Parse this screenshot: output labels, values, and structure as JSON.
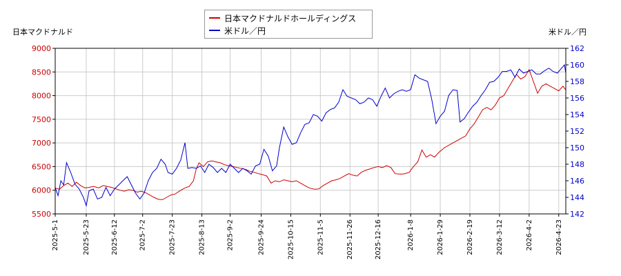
{
  "colors": {
    "series1": "#cc0000",
    "series2": "#0000cc",
    "grid": "#cccccc",
    "axis": "#000000",
    "tick_left": "#cc0000",
    "tick_right": "#0000cc"
  },
  "chart_data": {
    "type": "line",
    "legend_position": "top-center",
    "grid": true,
    "series": [
      {
        "name": "日本マクドナルドホールディングス",
        "axis": "left",
        "points": [
          [
            "2025-05-01",
            6050
          ],
          [
            "2025-05-04",
            6020
          ],
          [
            "2025-05-07",
            6100
          ],
          [
            "2025-05-10",
            6150
          ],
          [
            "2025-05-13",
            6080
          ],
          [
            "2025-05-16",
            6170
          ],
          [
            "2025-05-19",
            6100
          ],
          [
            "2025-05-22",
            6050
          ],
          [
            "2025-05-25",
            6060
          ],
          [
            "2025-05-28",
            6080
          ],
          [
            "2025-06-01",
            6050
          ],
          [
            "2025-06-04",
            6100
          ],
          [
            "2025-06-07",
            6080
          ],
          [
            "2025-06-10",
            6060
          ],
          [
            "2025-06-13",
            6030
          ],
          [
            "2025-06-16",
            6000
          ],
          [
            "2025-06-19",
            5980
          ],
          [
            "2025-06-22",
            6010
          ],
          [
            "2025-06-25",
            6000
          ],
          [
            "2025-06-28",
            5960
          ],
          [
            "2025-07-01",
            5980
          ],
          [
            "2025-07-04",
            5950
          ],
          [
            "2025-07-07",
            5900
          ],
          [
            "2025-07-10",
            5850
          ],
          [
            "2025-07-13",
            5810
          ],
          [
            "2025-07-16",
            5800
          ],
          [
            "2025-07-19",
            5850
          ],
          [
            "2025-07-22",
            5900
          ],
          [
            "2025-07-25",
            5920
          ],
          [
            "2025-07-28",
            5980
          ],
          [
            "2025-08-01",
            6050
          ],
          [
            "2025-08-04",
            6080
          ],
          [
            "2025-08-07",
            6200
          ],
          [
            "2025-08-09",
            6450
          ],
          [
            "2025-08-11",
            6580
          ],
          [
            "2025-08-14",
            6500
          ],
          [
            "2025-08-17",
            6600
          ],
          [
            "2025-08-20",
            6620
          ],
          [
            "2025-08-23",
            6600
          ],
          [
            "2025-08-26",
            6580
          ],
          [
            "2025-08-29",
            6540
          ],
          [
            "2025-09-01",
            6520
          ],
          [
            "2025-09-04",
            6500
          ],
          [
            "2025-09-07",
            6480
          ],
          [
            "2025-09-10",
            6460
          ],
          [
            "2025-09-13",
            6440
          ],
          [
            "2025-09-16",
            6400
          ],
          [
            "2025-09-19",
            6380
          ],
          [
            "2025-09-22",
            6350
          ],
          [
            "2025-09-25",
            6330
          ],
          [
            "2025-09-28",
            6300
          ],
          [
            "2025-10-01",
            6150
          ],
          [
            "2025-10-04",
            6200
          ],
          [
            "2025-10-07",
            6180
          ],
          [
            "2025-10-10",
            6220
          ],
          [
            "2025-10-13",
            6200
          ],
          [
            "2025-10-16",
            6180
          ],
          [
            "2025-10-19",
            6200
          ],
          [
            "2025-10-22",
            6150
          ],
          [
            "2025-10-25",
            6100
          ],
          [
            "2025-10-28",
            6050
          ],
          [
            "2025-11-01",
            6020
          ],
          [
            "2025-11-04",
            6030
          ],
          [
            "2025-11-07",
            6100
          ],
          [
            "2025-11-10",
            6150
          ],
          [
            "2025-11-13",
            6200
          ],
          [
            "2025-11-16",
            6220
          ],
          [
            "2025-11-19",
            6250
          ],
          [
            "2025-11-22",
            6300
          ],
          [
            "2025-11-25",
            6350
          ],
          [
            "2025-11-28",
            6320
          ],
          [
            "2025-12-01",
            6300
          ],
          [
            "2025-12-04",
            6380
          ],
          [
            "2025-12-07",
            6420
          ],
          [
            "2025-12-10",
            6450
          ],
          [
            "2025-12-13",
            6480
          ],
          [
            "2025-12-16",
            6500
          ],
          [
            "2025-12-19",
            6480
          ],
          [
            "2025-12-22",
            6520
          ],
          [
            "2025-12-25",
            6480
          ],
          [
            "2025-12-28",
            6350
          ],
          [
            "2026-01-01",
            6340
          ],
          [
            "2026-01-04",
            6350
          ],
          [
            "2026-01-07",
            6380
          ],
          [
            "2026-01-10",
            6500
          ],
          [
            "2026-01-13",
            6600
          ],
          [
            "2026-01-16",
            6850
          ],
          [
            "2026-01-19",
            6700
          ],
          [
            "2026-01-22",
            6750
          ],
          [
            "2026-01-25",
            6700
          ],
          [
            "2026-01-28",
            6800
          ],
          [
            "2026-02-01",
            6900
          ],
          [
            "2026-02-04",
            6950
          ],
          [
            "2026-02-07",
            7000
          ],
          [
            "2026-02-10",
            7050
          ],
          [
            "2026-02-13",
            7100
          ],
          [
            "2026-02-16",
            7150
          ],
          [
            "2026-02-19",
            7300
          ],
          [
            "2026-02-22",
            7400
          ],
          [
            "2026-02-25",
            7550
          ],
          [
            "2026-02-28",
            7700
          ],
          [
            "2026-03-03",
            7750
          ],
          [
            "2026-03-06",
            7700
          ],
          [
            "2026-03-09",
            7800
          ],
          [
            "2026-03-12",
            7950
          ],
          [
            "2026-03-15",
            8000
          ],
          [
            "2026-03-18",
            8150
          ],
          [
            "2026-03-21",
            8300
          ],
          [
            "2026-03-24",
            8450
          ],
          [
            "2026-03-27",
            8350
          ],
          [
            "2026-03-30",
            8400
          ],
          [
            "2026-04-02",
            8550
          ],
          [
            "2026-04-05",
            8300
          ],
          [
            "2026-04-08",
            8050
          ],
          [
            "2026-04-11",
            8200
          ],
          [
            "2026-04-14",
            8250
          ],
          [
            "2026-04-17",
            8200
          ],
          [
            "2026-04-20",
            8150
          ],
          [
            "2026-04-23",
            8100
          ],
          [
            "2026-04-26",
            8200
          ],
          [
            "2026-04-28",
            8120
          ]
        ]
      },
      {
        "name": "米ドル／円",
        "axis": "right",
        "points": [
          [
            "2025-05-01",
            145.2
          ],
          [
            "2025-05-03",
            144.2
          ],
          [
            "2025-05-05",
            146.0
          ],
          [
            "2025-05-07",
            145.5
          ],
          [
            "2025-05-09",
            148.2
          ],
          [
            "2025-05-12",
            147.0
          ],
          [
            "2025-05-15",
            145.6
          ],
          [
            "2025-05-18",
            145.0
          ],
          [
            "2025-05-21",
            144.0
          ],
          [
            "2025-05-23",
            143.0
          ],
          [
            "2025-05-25",
            144.8
          ],
          [
            "2025-05-28",
            145.0
          ],
          [
            "2025-05-31",
            143.8
          ],
          [
            "2025-06-03",
            144.0
          ],
          [
            "2025-06-06",
            145.2
          ],
          [
            "2025-06-09",
            144.2
          ],
          [
            "2025-06-12",
            145.0
          ],
          [
            "2025-06-15",
            145.5
          ],
          [
            "2025-06-18",
            146.0
          ],
          [
            "2025-06-21",
            146.5
          ],
          [
            "2025-06-24",
            145.5
          ],
          [
            "2025-06-27",
            144.5
          ],
          [
            "2025-06-30",
            143.8
          ],
          [
            "2025-07-03",
            144.5
          ],
          [
            "2025-07-06",
            146.0
          ],
          [
            "2025-07-09",
            147.0
          ],
          [
            "2025-07-12",
            147.5
          ],
          [
            "2025-07-15",
            148.6
          ],
          [
            "2025-07-18",
            148.0
          ],
          [
            "2025-07-20",
            147.0
          ],
          [
            "2025-07-23",
            146.8
          ],
          [
            "2025-07-26",
            147.5
          ],
          [
            "2025-07-29",
            148.5
          ],
          [
            "2025-08-01",
            150.6
          ],
          [
            "2025-08-03",
            147.5
          ],
          [
            "2025-08-06",
            147.6
          ],
          [
            "2025-08-09",
            147.5
          ],
          [
            "2025-08-12",
            147.8
          ],
          [
            "2025-08-15",
            147.0
          ],
          [
            "2025-08-18",
            148.0
          ],
          [
            "2025-08-21",
            147.6
          ],
          [
            "2025-08-24",
            147.0
          ],
          [
            "2025-08-27",
            147.5
          ],
          [
            "2025-08-30",
            147.0
          ],
          [
            "2025-09-02",
            148.0
          ],
          [
            "2025-09-05",
            147.5
          ],
          [
            "2025-09-08",
            147.0
          ],
          [
            "2025-09-11",
            147.5
          ],
          [
            "2025-09-14",
            147.2
          ],
          [
            "2025-09-17",
            146.8
          ],
          [
            "2025-09-20",
            147.8
          ],
          [
            "2025-09-23",
            148.0
          ],
          [
            "2025-09-26",
            149.8
          ],
          [
            "2025-09-29",
            149.0
          ],
          [
            "2025-10-02",
            147.2
          ],
          [
            "2025-10-05",
            147.8
          ],
          [
            "2025-10-07",
            150.0
          ],
          [
            "2025-10-10",
            152.5
          ],
          [
            "2025-10-13",
            151.3
          ],
          [
            "2025-10-16",
            150.4
          ],
          [
            "2025-10-19",
            150.6
          ],
          [
            "2025-10-22",
            151.8
          ],
          [
            "2025-10-25",
            152.8
          ],
          [
            "2025-10-28",
            153.0
          ],
          [
            "2025-10-31",
            154.0
          ],
          [
            "2025-11-03",
            153.8
          ],
          [
            "2025-11-06",
            153.2
          ],
          [
            "2025-11-09",
            154.2
          ],
          [
            "2025-11-12",
            154.6
          ],
          [
            "2025-11-15",
            154.8
          ],
          [
            "2025-11-18",
            155.5
          ],
          [
            "2025-11-21",
            157.0
          ],
          [
            "2025-11-24",
            156.2
          ],
          [
            "2025-11-27",
            156.0
          ],
          [
            "2025-11-30",
            155.8
          ],
          [
            "2025-12-03",
            155.3
          ],
          [
            "2025-12-06",
            155.5
          ],
          [
            "2025-12-09",
            156.0
          ],
          [
            "2025-12-12",
            155.8
          ],
          [
            "2025-12-15",
            155.0
          ],
          [
            "2025-12-18",
            156.2
          ],
          [
            "2025-12-21",
            157.2
          ],
          [
            "2025-12-24",
            156.0
          ],
          [
            "2025-12-27",
            156.5
          ],
          [
            "2025-12-30",
            156.8
          ],
          [
            "2026-01-02",
            157.0
          ],
          [
            "2026-01-05",
            156.8
          ],
          [
            "2026-01-08",
            157.0
          ],
          [
            "2026-01-11",
            158.8
          ],
          [
            "2026-01-14",
            158.4
          ],
          [
            "2026-01-17",
            158.2
          ],
          [
            "2026-01-20",
            158.0
          ],
          [
            "2026-01-23",
            155.8
          ],
          [
            "2026-01-26",
            152.9
          ],
          [
            "2026-01-29",
            153.8
          ],
          [
            "2026-02-01",
            154.4
          ],
          [
            "2026-02-04",
            156.3
          ],
          [
            "2026-02-07",
            157.0
          ],
          [
            "2026-02-10",
            156.9
          ],
          [
            "2026-02-12",
            153.1
          ],
          [
            "2026-02-15",
            153.5
          ],
          [
            "2026-02-18",
            154.3
          ],
          [
            "2026-02-21",
            155.0
          ],
          [
            "2026-02-24",
            155.5
          ],
          [
            "2026-02-27",
            156.3
          ],
          [
            "2026-03-02",
            157.0
          ],
          [
            "2026-03-05",
            157.9
          ],
          [
            "2026-03-08",
            158.0
          ],
          [
            "2026-03-11",
            158.5
          ],
          [
            "2026-03-14",
            159.2
          ],
          [
            "2026-03-17",
            159.2
          ],
          [
            "2026-03-20",
            159.4
          ],
          [
            "2026-03-23",
            158.5
          ],
          [
            "2026-03-26",
            159.5
          ],
          [
            "2026-03-29",
            159.0
          ],
          [
            "2026-04-01",
            159.2
          ],
          [
            "2026-04-04",
            159.4
          ],
          [
            "2026-04-07",
            158.9
          ],
          [
            "2026-04-10",
            158.9
          ],
          [
            "2026-04-13",
            159.3
          ],
          [
            "2026-04-16",
            159.6
          ],
          [
            "2026-04-19",
            159.2
          ],
          [
            "2026-04-22",
            159.0
          ],
          [
            "2026-04-25",
            159.6
          ],
          [
            "2026-04-27",
            160.0
          ],
          [
            "2026-04-28",
            159.0
          ]
        ]
      }
    ],
    "x_ticks": [
      "2025-5-1",
      "2025-5-23",
      "2025-6-12",
      "2025-7-2",
      "2025-7-23",
      "2025-8-13",
      "2025-9-2",
      "2025-9-24",
      "2025-10-15",
      "2025-11-5",
      "2025-11-26",
      "2025-12-16",
      "2026-1-8",
      "2026-1-29",
      "2026-2-19",
      "2026-3-12",
      "2026-4-2",
      "2026-4-23"
    ],
    "xlim": [
      "2025-05-01",
      "2026-04-28"
    ],
    "y_left": {
      "label": "日本マクドナルド",
      "ylim": [
        5500,
        9000
      ],
      "ticks": [
        5500,
        6000,
        6500,
        7000,
        7500,
        8000,
        8500,
        9000
      ]
    },
    "y_right": {
      "label": "米ドル／円",
      "ylim": [
        142,
        162
      ],
      "ticks": [
        142,
        144,
        146,
        148,
        150,
        152,
        154,
        156,
        158,
        160,
        162
      ]
    }
  }
}
